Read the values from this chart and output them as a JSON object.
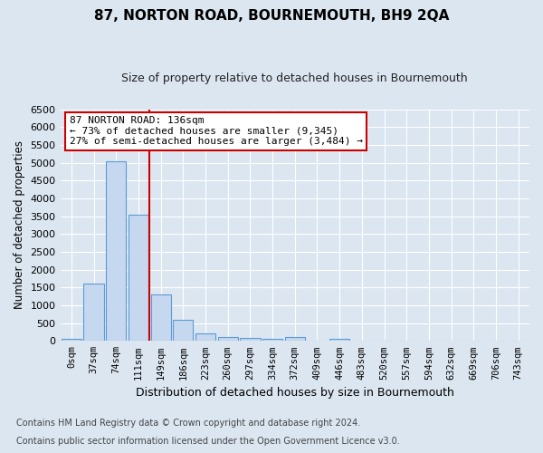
{
  "title": "87, NORTON ROAD, BOURNEMOUTH, BH9 2QA",
  "subtitle": "Size of property relative to detached houses in Bournemouth",
  "xlabel": "Distribution of detached houses by size in Bournemouth",
  "ylabel": "Number of detached properties",
  "footnote1": "Contains HM Land Registry data © Crown copyright and database right 2024.",
  "footnote2": "Contains public sector information licensed under the Open Government Licence v3.0.",
  "bar_labels": [
    "0sqm",
    "37sqm",
    "74sqm",
    "111sqm",
    "149sqm",
    "186sqm",
    "223sqm",
    "260sqm",
    "297sqm",
    "334sqm",
    "372sqm",
    "409sqm",
    "446sqm",
    "483sqm",
    "520sqm",
    "557sqm",
    "594sqm",
    "632sqm",
    "669sqm",
    "706sqm",
    "743sqm"
  ],
  "bar_values": [
    50,
    1600,
    5050,
    3550,
    1300,
    600,
    220,
    110,
    80,
    60,
    120,
    0,
    50,
    0,
    0,
    0,
    0,
    0,
    0,
    0,
    0
  ],
  "bar_color": "#c5d8ef",
  "bar_edge_color": "#5b9bd5",
  "ylim": [
    0,
    6500
  ],
  "yticks": [
    0,
    500,
    1000,
    1500,
    2000,
    2500,
    3000,
    3500,
    4000,
    4500,
    5000,
    5500,
    6000,
    6500
  ],
  "property_label": "87 NORTON ROAD: 136sqm",
  "annotation_line1": "← 73% of detached houses are smaller (9,345)",
  "annotation_line2": "27% of semi-detached houses are larger (3,484) →",
  "vline_position": 3.5,
  "annotation_box_color": "#ffffff",
  "annotation_box_edge": "#cc0000",
  "bg_color": "#dce6f1",
  "plot_bg_color": "#dce6f1",
  "grid_color": "#ffffff"
}
